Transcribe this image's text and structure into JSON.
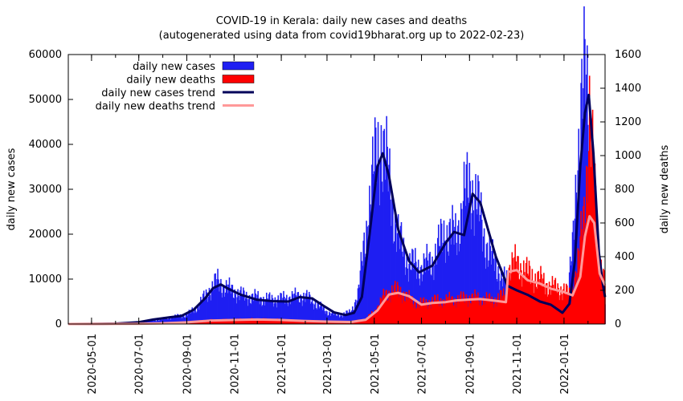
{
  "chart_data": {
    "type": "bar",
    "title": "COVID-19 in Kerala: daily new cases and deaths",
    "subtitle": "(autogenerated using data from covid19bharat.org up to 2022-02-23)",
    "ylabel": "daily new cases",
    "y2label": "daily new deaths",
    "ylim": [
      0,
      60000
    ],
    "y2lim": [
      0,
      1600
    ],
    "xlim": [
      "2020-04-01",
      "2022-02-23"
    ],
    "yticks": [
      "0",
      "10000",
      "20000",
      "30000",
      "40000",
      "50000",
      "60000"
    ],
    "y2ticks": [
      "0",
      "200",
      "400",
      "600",
      "800",
      "1000",
      "1200",
      "1400",
      "1600"
    ],
    "xticks": [
      "2020-05-01",
      "2020-07-01",
      "2020-09-01",
      "2020-11-01",
      "2021-01-01",
      "2021-03-01",
      "2021-05-01",
      "2021-07-01",
      "2021-09-01",
      "2021-11-01",
      "2022-01-01"
    ],
    "legend_position": "top-left",
    "grid": false,
    "series": [
      {
        "name": "daily new cases",
        "kind": "bar",
        "axis": "y",
        "color": "#1f1ff2",
        "points": [
          [
            "2020-04-01",
            20
          ],
          [
            "2020-05-01",
            10
          ],
          [
            "2020-05-25",
            60
          ],
          [
            "2020-06-15",
            110
          ],
          [
            "2020-07-01",
            200
          ],
          [
            "2020-07-15",
            650
          ],
          [
            "2020-08-01",
            1100
          ],
          [
            "2020-08-15",
            1600
          ],
          [
            "2020-09-01",
            2000
          ],
          [
            "2020-09-15",
            3800
          ],
          [
            "2020-10-01",
            7600
          ],
          [
            "2020-10-10",
            9500
          ],
          [
            "2020-10-20",
            8200
          ],
          [
            "2020-11-01",
            7200
          ],
          [
            "2020-11-15",
            6100
          ],
          [
            "2020-12-01",
            5800
          ],
          [
            "2020-12-15",
            5400
          ],
          [
            "2021-01-01",
            5500
          ],
          [
            "2021-01-15",
            6000
          ],
          [
            "2021-02-01",
            6100
          ],
          [
            "2021-02-15",
            4500
          ],
          [
            "2021-03-01",
            2700
          ],
          [
            "2021-03-15",
            1900
          ],
          [
            "2021-04-01",
            2600
          ],
          [
            "2021-04-10",
            6500
          ],
          [
            "2021-04-20",
            20000
          ],
          [
            "2021-05-01",
            35000
          ],
          [
            "2021-05-10",
            41000
          ],
          [
            "2021-05-20",
            32000
          ],
          [
            "2021-06-01",
            19000
          ],
          [
            "2021-06-15",
            13500
          ],
          [
            "2021-07-01",
            12500
          ],
          [
            "2021-07-15",
            14000
          ],
          [
            "2021-08-01",
            20500
          ],
          [
            "2021-08-15",
            19500
          ],
          [
            "2021-08-25",
            28000
          ],
          [
            "2021-09-01",
            30500
          ],
          [
            "2021-09-10",
            28000
          ],
          [
            "2021-09-20",
            19000
          ],
          [
            "2021-10-01",
            14000
          ],
          [
            "2021-10-15",
            10000
          ],
          [
            "2021-11-01",
            7200
          ],
          [
            "2021-11-15",
            5800
          ],
          [
            "2021-12-01",
            4600
          ],
          [
            "2021-12-15",
            3700
          ],
          [
            "2021-12-28",
            2600
          ],
          [
            "2022-01-05",
            5500
          ],
          [
            "2022-01-12",
            16000
          ],
          [
            "2022-01-18",
            35000
          ],
          [
            "2022-01-24",
            50000
          ],
          [
            "2022-01-28",
            54000
          ],
          [
            "2022-02-03",
            45000
          ],
          [
            "2022-02-10",
            26000
          ],
          [
            "2022-02-17",
            10000
          ],
          [
            "2022-02-23",
            5000
          ]
        ]
      },
      {
        "name": "daily new deaths",
        "kind": "bar",
        "axis": "y2",
        "color": "#ff0000",
        "points": [
          [
            "2020-04-01",
            0
          ],
          [
            "2020-07-01",
            1
          ],
          [
            "2020-08-01",
            5
          ],
          [
            "2020-09-01",
            12
          ],
          [
            "2020-10-01",
            22
          ],
          [
            "2020-11-01",
            25
          ],
          [
            "2020-12-01",
            28
          ],
          [
            "2021-01-01",
            24
          ],
          [
            "2021-02-01",
            18
          ],
          [
            "2021-03-01",
            14
          ],
          [
            "2021-04-01",
            12
          ],
          [
            "2021-04-20",
            30
          ],
          [
            "2021-05-01",
            70
          ],
          [
            "2021-05-15",
            170
          ],
          [
            "2021-05-25",
            200
          ],
          [
            "2021-06-05",
            190
          ],
          [
            "2021-06-20",
            130
          ],
          [
            "2021-07-01",
            120
          ],
          [
            "2021-07-15",
            135
          ],
          [
            "2021-08-01",
            140
          ],
          [
            "2021-08-15",
            145
          ],
          [
            "2021-09-01",
            155
          ],
          [
            "2021-09-15",
            150
          ],
          [
            "2021-10-01",
            140
          ],
          [
            "2021-10-18",
            170
          ],
          [
            "2021-10-20",
            320
          ],
          [
            "2021-11-01",
            360
          ],
          [
            "2021-11-15",
            300
          ],
          [
            "2021-12-01",
            260
          ],
          [
            "2021-12-15",
            220
          ],
          [
            "2022-01-01",
            200
          ],
          [
            "2022-01-10",
            160
          ],
          [
            "2022-01-20",
            380
          ],
          [
            "2022-01-28",
            700
          ],
          [
            "2022-02-03",
            1250
          ],
          [
            "2022-02-08",
            900
          ],
          [
            "2022-02-14",
            450
          ],
          [
            "2022-02-20",
            300
          ],
          [
            "2022-02-23",
            250
          ]
        ]
      },
      {
        "name": "daily new cases trend",
        "kind": "line",
        "axis": "y",
        "color": "#00005a",
        "points": [
          [
            "2020-04-01",
            10
          ],
          [
            "2020-05-01",
            20
          ],
          [
            "2020-06-01",
            80
          ],
          [
            "2020-07-01",
            400
          ],
          [
            "2020-07-20",
            1000
          ],
          [
            "2020-08-10",
            1500
          ],
          [
            "2020-08-25",
            1800
          ],
          [
            "2020-09-10",
            3200
          ],
          [
            "2020-09-25",
            5800
          ],
          [
            "2020-10-05",
            8000
          ],
          [
            "2020-10-15",
            8800
          ],
          [
            "2020-10-25",
            7800
          ],
          [
            "2020-11-10",
            6500
          ],
          [
            "2020-12-01",
            5400
          ],
          [
            "2020-12-20",
            5100
          ],
          [
            "2021-01-10",
            5000
          ],
          [
            "2021-01-25",
            6000
          ],
          [
            "2021-02-10",
            5700
          ],
          [
            "2021-02-25",
            4000
          ],
          [
            "2021-03-10",
            2600
          ],
          [
            "2021-03-25",
            2000
          ],
          [
            "2021-04-05",
            2500
          ],
          [
            "2021-04-15",
            6000
          ],
          [
            "2021-04-25",
            20000
          ],
          [
            "2021-05-05",
            35000
          ],
          [
            "2021-05-12",
            38000
          ],
          [
            "2021-05-20",
            33000
          ],
          [
            "2021-06-01",
            21000
          ],
          [
            "2021-06-15",
            14000
          ],
          [
            "2021-06-28",
            11500
          ],
          [
            "2021-07-15",
            13000
          ],
          [
            "2021-08-01",
            18000
          ],
          [
            "2021-08-12",
            20500
          ],
          [
            "2021-08-25",
            19800
          ],
          [
            "2021-09-05",
            29000
          ],
          [
            "2021-09-15",
            27000
          ],
          [
            "2021-09-25",
            21000
          ],
          [
            "2021-10-05",
            15000
          ],
          [
            "2021-10-20",
            8500
          ],
          [
            "2021-11-01",
            7500
          ],
          [
            "2021-11-15",
            6500
          ],
          [
            "2021-12-01",
            5000
          ],
          [
            "2021-12-15",
            4300
          ],
          [
            "2021-12-30",
            2500
          ],
          [
            "2022-01-08",
            4500
          ],
          [
            "2022-01-15",
            14000
          ],
          [
            "2022-01-22",
            35000
          ],
          [
            "2022-01-28",
            47000
          ],
          [
            "2022-02-02",
            51000
          ],
          [
            "2022-02-08",
            38000
          ],
          [
            "2022-02-15",
            16000
          ],
          [
            "2022-02-20",
            9000
          ],
          [
            "2022-02-23",
            6000
          ]
        ]
      },
      {
        "name": "daily new deaths trend",
        "kind": "line",
        "axis": "y2",
        "color": "#ff9999",
        "points": [
          [
            "2020-04-01",
            0
          ],
          [
            "2020-07-01",
            1
          ],
          [
            "2020-08-01",
            4
          ],
          [
            "2020-09-01",
            10
          ],
          [
            "2020-10-01",
            20
          ],
          [
            "2020-11-01",
            24
          ],
          [
            "2020-12-01",
            27
          ],
          [
            "2021-01-01",
            24
          ],
          [
            "2021-02-01",
            18
          ],
          [
            "2021-03-01",
            14
          ],
          [
            "2021-04-01",
            12
          ],
          [
            "2021-04-20",
            25
          ],
          [
            "2021-05-05",
            80
          ],
          [
            "2021-05-20",
            175
          ],
          [
            "2021-06-01",
            185
          ],
          [
            "2021-06-15",
            165
          ],
          [
            "2021-07-01",
            115
          ],
          [
            "2021-07-15",
            125
          ],
          [
            "2021-08-01",
            130
          ],
          [
            "2021-08-15",
            140
          ],
          [
            "2021-09-01",
            145
          ],
          [
            "2021-09-15",
            148
          ],
          [
            "2021-10-01",
            140
          ],
          [
            "2021-10-18",
            130
          ],
          [
            "2021-10-21",
            310
          ],
          [
            "2021-11-01",
            320
          ],
          [
            "2021-11-15",
            260
          ],
          [
            "2021-12-01",
            240
          ],
          [
            "2021-12-15",
            210
          ],
          [
            "2022-01-01",
            190
          ],
          [
            "2022-01-12",
            170
          ],
          [
            "2022-01-22",
            280
          ],
          [
            "2022-01-28",
            520
          ],
          [
            "2022-02-03",
            640
          ],
          [
            "2022-02-09",
            600
          ],
          [
            "2022-02-16",
            300
          ],
          [
            "2022-02-23",
            230
          ]
        ]
      }
    ]
  }
}
